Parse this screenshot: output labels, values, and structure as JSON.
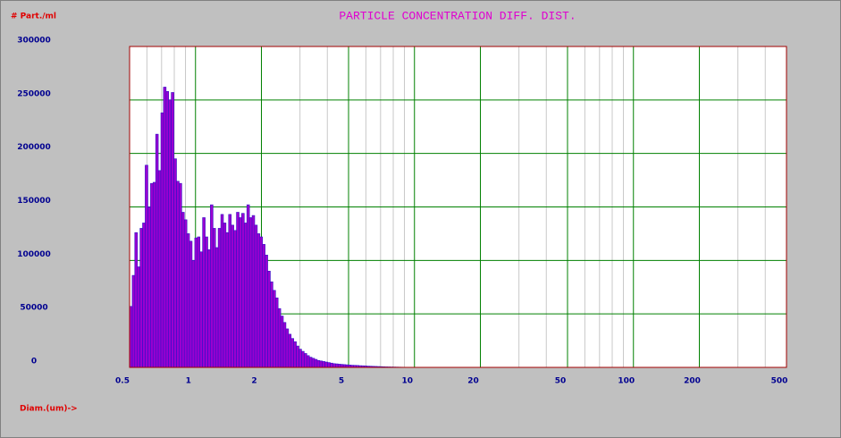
{
  "chart_data": {
    "type": "histogram",
    "title": "PARTICLE CONCENTRATION DIFF.  DIST.",
    "ylabel": "# Part./ml",
    "xlabel": "Diam.(um)->",
    "log_x": true,
    "grid": true,
    "xlim": [
      0.5,
      500
    ],
    "ylim": [
      0,
      300000
    ],
    "xticks": [
      0.5,
      1,
      2,
      5,
      10,
      20,
      50,
      100,
      200,
      500
    ],
    "x_minor_ticks": [
      0.6,
      0.7,
      0.8,
      0.9,
      3,
      4,
      6,
      7,
      8,
      9,
      30,
      40,
      60,
      70,
      80,
      90,
      300,
      400
    ],
    "yticks": [
      0,
      50000,
      100000,
      150000,
      200000,
      250000,
      300000
    ],
    "color": "#9a00d0",
    "edge_color": "#3010c8",
    "bins": [
      0.5,
      0.514,
      0.528,
      0.543,
      0.558,
      0.573,
      0.589,
      0.606,
      0.623,
      0.64,
      0.658,
      0.676,
      0.695,
      0.714,
      0.734,
      0.754,
      0.775,
      0.797,
      0.819,
      0.842,
      0.865,
      0.889,
      0.914,
      0.939,
      0.965,
      0.992,
      1.02,
      1.048,
      1.077,
      1.107,
      1.138,
      1.169,
      1.202,
      1.235,
      1.269,
      1.305,
      1.341,
      1.378,
      1.416,
      1.456,
      1.496,
      1.538,
      1.581,
      1.624,
      1.67,
      1.716,
      1.764,
      1.813,
      1.863,
      1.915,
      1.968,
      2.023,
      2.079,
      2.137,
      2.196,
      2.257,
      2.32,
      2.384,
      2.45,
      2.518,
      2.588,
      2.66,
      2.734,
      2.81,
      2.888,
      2.968,
      3.051,
      3.136,
      3.223,
      3.312,
      3.404,
      3.499,
      3.596,
      3.696,
      3.798,
      3.904,
      4.012,
      4.124,
      4.238,
      4.356,
      4.477,
      4.601,
      4.729,
      4.861,
      4.996,
      5.135,
      5.277,
      5.424,
      5.575,
      5.729,
      5.889,
      6.052,
      6.22,
      6.393,
      6.571,
      6.753,
      6.941,
      7.134,
      7.332,
      7.536,
      7.745,
      7.96,
      8.181,
      8.409,
      8.642,
      8.882,
      9.129,
      9.383,
      9.643
    ],
    "values": [
      57000,
      86000,
      126000,
      94000,
      130000,
      135000,
      189000,
      150000,
      172000,
      173000,
      218000,
      184000,
      238000,
      262000,
      258000,
      250000,
      257000,
      195000,
      174000,
      172000,
      145000,
      138000,
      125000,
      118000,
      100000,
      121000,
      122000,
      108000,
      140000,
      122000,
      110000,
      152000,
      130000,
      112000,
      130000,
      143000,
      135000,
      126000,
      143000,
      133000,
      128000,
      145000,
      140000,
      144000,
      135000,
      152000,
      140000,
      142000,
      133000,
      125000,
      122000,
      115000,
      105000,
      90000,
      80000,
      72000,
      65000,
      55000,
      48000,
      42000,
      36000,
      31000,
      27000,
      24000,
      20000,
      17000,
      15000,
      13000,
      11000,
      9500,
      8500,
      7500,
      6500,
      6000,
      5500,
      5000,
      4500,
      4000,
      3500,
      3300,
      3000,
      2800,
      2600,
      2400,
      2200,
      2000,
      1900,
      1800,
      1600,
      1500,
      1400,
      1200,
      1100,
      1000,
      900,
      800,
      700,
      600,
      500,
      450,
      400,
      350,
      300,
      250,
      200,
      150,
      100,
      80
    ]
  }
}
